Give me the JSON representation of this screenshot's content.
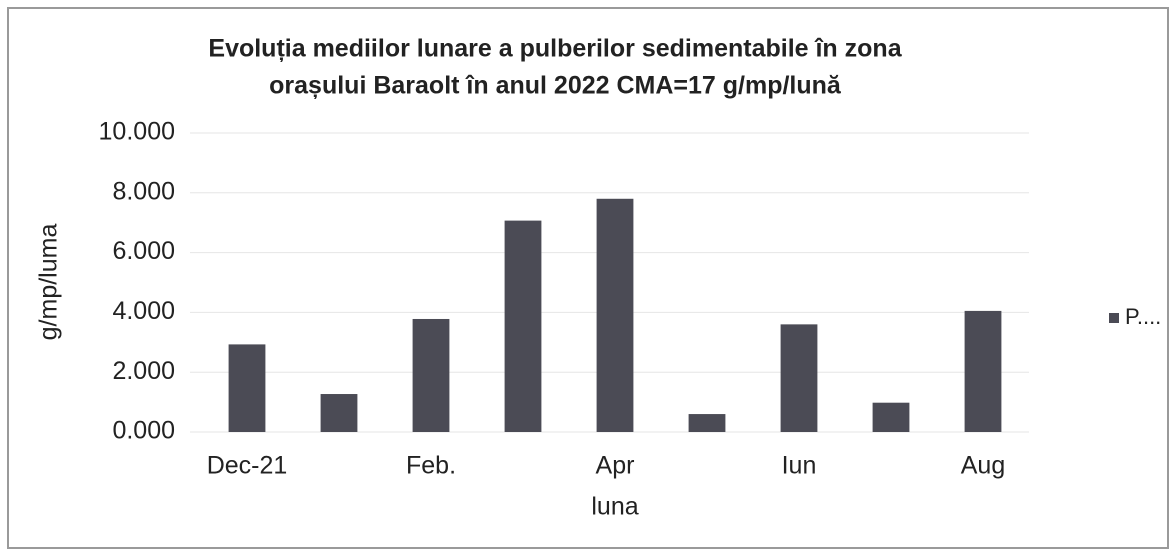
{
  "chart_data": {
    "type": "bar",
    "title": [
      "Evoluția mediilor lunare a pulberilor sedimentabile în zona",
      "orașului Baraolt în anul 2022 CMA=17 g/mp/lună"
    ],
    "y_label": "g/mp/luma",
    "x_label": "luna",
    "categories": [
      "Dec-21",
      null,
      "Feb.",
      null,
      "Apr",
      null,
      "Iun",
      null,
      "Aug"
    ],
    "series": [
      {
        "name": "P....",
        "color": "#4b4b55",
        "values": [
          2.93,
          1.27,
          3.78,
          7.07,
          7.8,
          0.6,
          3.6,
          0.98,
          4.05
        ]
      }
    ],
    "ylim": [
      0,
      10
    ],
    "yticks": [
      {
        "value": 0,
        "label": "0.000"
      },
      {
        "value": 2,
        "label": "2.000"
      },
      {
        "value": 4,
        "label": "4.000"
      },
      {
        "value": 6,
        "label": "6.000"
      },
      {
        "value": 8,
        "label": "8.000"
      },
      {
        "value": 10,
        "label": "10.000"
      }
    ],
    "grid": true,
    "legend": "right"
  }
}
